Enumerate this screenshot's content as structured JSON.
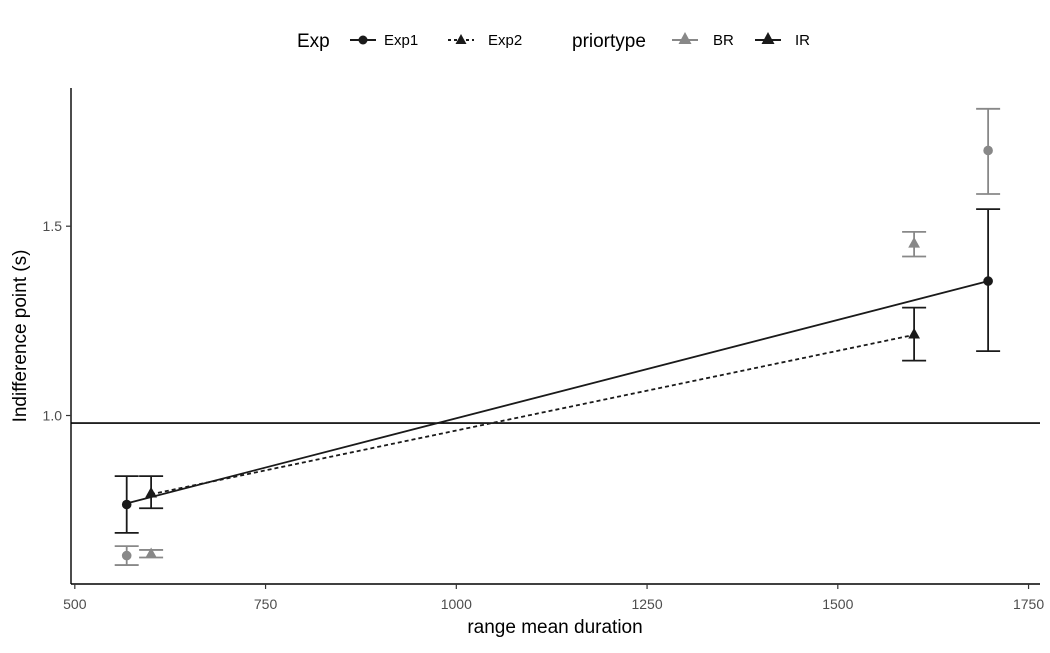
{
  "chart_data": {
    "type": "scatter",
    "title": "",
    "xlabel": "range mean duration",
    "ylabel": "Indifference point (s)",
    "xlim": [
      495,
      1765
    ],
    "ylim": [
      0.555,
      1.865
    ],
    "x_ticks": [
      500,
      750,
      1000,
      1250,
      1500,
      1750
    ],
    "x_tick_labels": [
      "500",
      "750",
      "1000",
      "1250",
      "1500",
      "1750"
    ],
    "y_ticks": [
      1.0,
      1.5
    ],
    "y_tick_labels": [
      "1.0",
      "1.5"
    ],
    "grid": false,
    "reference_line_y": 0.98,
    "legend": {
      "position": "top",
      "exp_title": "Exp",
      "exp_items": [
        {
          "label": "Exp1",
          "shape": "circle",
          "linestyle": "solid"
        },
        {
          "label": "Exp2",
          "shape": "triangle",
          "linestyle": "dashed"
        }
      ],
      "prior_title": "priortype",
      "prior_items": [
        {
          "label": "BR",
          "color": "#888888"
        },
        {
          "label": "IR",
          "color": "#1a1a1a"
        }
      ]
    },
    "series": [
      {
        "exp": "Exp1",
        "priortype": "BR",
        "color": "#888888",
        "shape": "circle",
        "points": [
          {
            "x": 568,
            "y": 0.63,
            "ymin": 0.605,
            "ymax": 0.655
          },
          {
            "x": 1697,
            "y": 1.7,
            "ymin": 1.585,
            "ymax": 1.81
          }
        ]
      },
      {
        "exp": "Exp2",
        "priortype": "BR",
        "color": "#888888",
        "shape": "triangle",
        "points": [
          {
            "x": 600,
            "y": 0.635,
            "ymin": 0.625,
            "ymax": 0.645
          },
          {
            "x": 1600,
            "y": 1.455,
            "ymin": 1.42,
            "ymax": 1.485
          }
        ]
      },
      {
        "exp": "Exp1",
        "priortype": "IR",
        "color": "#1a1a1a",
        "shape": "circle",
        "points": [
          {
            "x": 568,
            "y": 0.765,
            "ymin": 0.69,
            "ymax": 0.84
          },
          {
            "x": 1697,
            "y": 1.355,
            "ymin": 1.17,
            "ymax": 1.545
          }
        ]
      },
      {
        "exp": "Exp2",
        "priortype": "IR",
        "color": "#1a1a1a",
        "shape": "triangle",
        "points": [
          {
            "x": 600,
            "y": 0.795,
            "ymin": 0.755,
            "ymax": 0.84
          },
          {
            "x": 1600,
            "y": 1.215,
            "ymin": 1.145,
            "ymax": 1.285
          }
        ]
      }
    ],
    "fit_lines": [
      {
        "exp": "Exp1",
        "linestyle": "solid",
        "x": [
          568,
          1697
        ],
        "y": [
          0.768,
          1.355
        ]
      },
      {
        "exp": "Exp2",
        "linestyle": "dashed",
        "x": [
          600,
          1600
        ],
        "y": [
          0.792,
          1.213
        ]
      }
    ]
  }
}
